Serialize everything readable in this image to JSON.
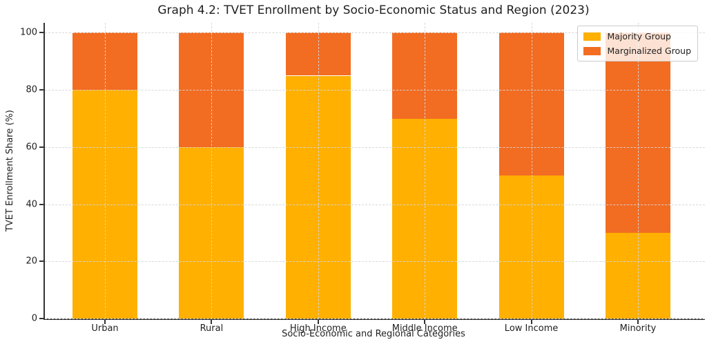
{
  "chart_data": {
    "type": "bar",
    "stacked": true,
    "title": "Graph 4.2: TVET Enrollment by Socio-Economic Status and Region (2023)",
    "xlabel": "Socio-Economic and Regional Categories",
    "ylabel": "TVET Enrollment Share (%)",
    "categories": [
      "Urban",
      "Rural",
      "High Income",
      "Middle Income",
      "Low Income",
      "Minority"
    ],
    "series": [
      {
        "name": "Majority Group",
        "color": "#FFB000",
        "values": [
          80,
          60,
          85,
          70,
          50,
          30
        ]
      },
      {
        "name": "Marginalized Group",
        "color": "#F26C22",
        "values": [
          20,
          40,
          15,
          30,
          50,
          70
        ]
      }
    ],
    "totals": [
      100,
      100,
      100,
      100,
      100,
      100
    ],
    "yticks": [
      0,
      20,
      40,
      60,
      80,
      100
    ],
    "ylim": [
      0,
      103.5
    ],
    "grid": "dashed, both axes, drawn over bars",
    "legend_position": "upper right"
  }
}
